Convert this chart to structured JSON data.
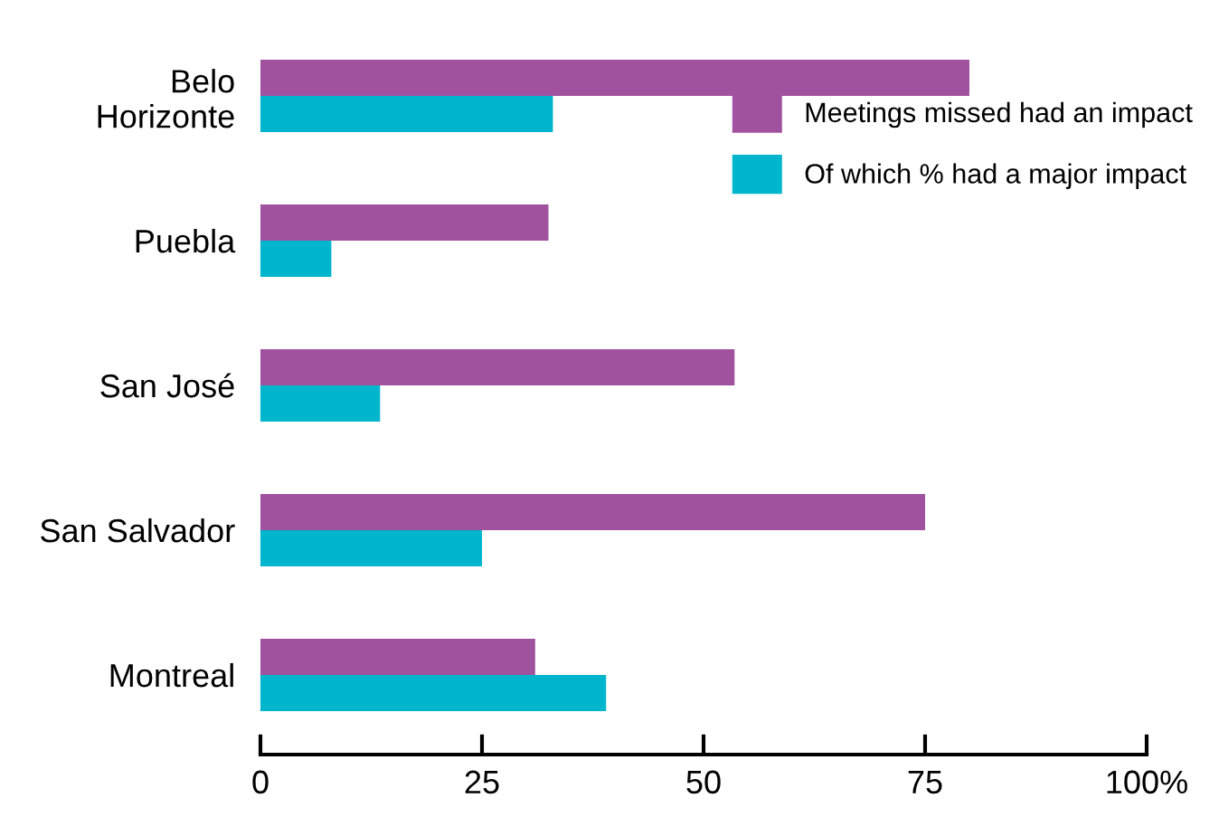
{
  "chart_data": {
    "type": "bar",
    "orientation": "horizontal",
    "categories": [
      "Belo\nHorizonte",
      "Puebla",
      "San José",
      "San Salvador",
      "Montreal"
    ],
    "series": [
      {
        "name": "Meetings missed had an impact",
        "color": "#a0529f",
        "values": [
          80,
          32.5,
          53.5,
          75,
          31
        ]
      },
      {
        "name": "Of which % had a major impact",
        "color": "#00b5cc",
        "values": [
          33,
          8,
          13.5,
          25,
          39
        ]
      }
    ],
    "xlim": [
      0,
      100
    ],
    "xticks": [
      0,
      25,
      50,
      75,
      {
        "value": 100,
        "label": "100%"
      }
    ],
    "grid": false,
    "legend": "top right"
  }
}
